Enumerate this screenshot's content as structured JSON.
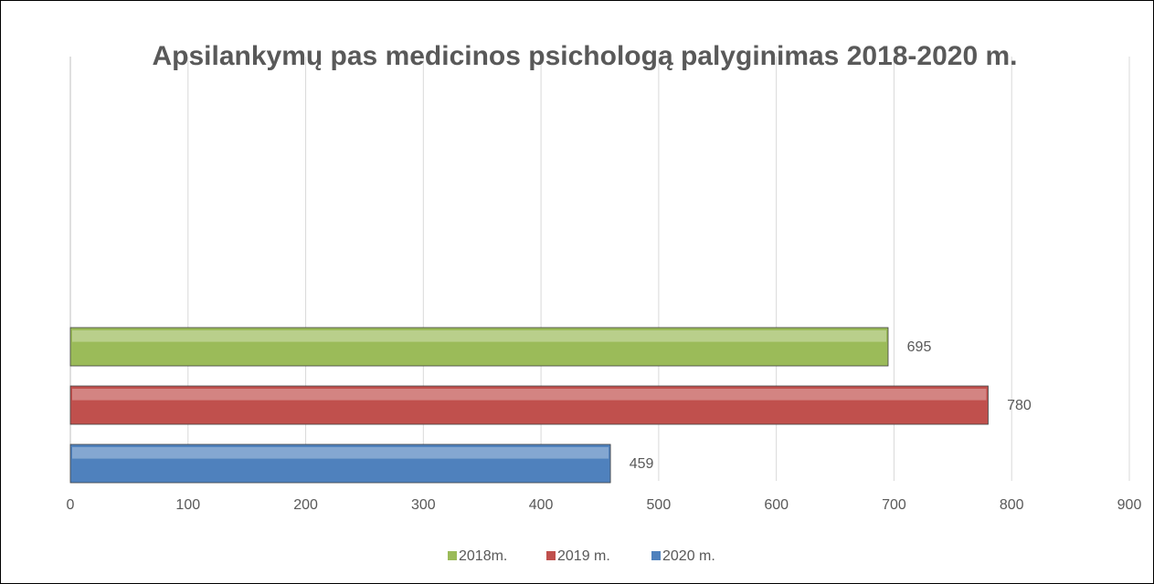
{
  "chart_data": {
    "type": "bar",
    "orientation": "horizontal",
    "title": "Apsilankymų pas medicinos psichologą palyginimas 2018-2020 m.",
    "categories": [
      null
    ],
    "series": [
      {
        "name": "2018m.",
        "color": "#9bbb59",
        "values": [
          695
        ]
      },
      {
        "name": "2019 m.",
        "color": "#c0504d",
        "values": [
          780
        ]
      },
      {
        "name": "2020 m.",
        "color": "#4f81bd",
        "values": [
          459
        ]
      }
    ],
    "xlim": [
      0,
      900
    ],
    "xticks": [
      0,
      100,
      200,
      300,
      400,
      500,
      600,
      700,
      800,
      900
    ],
    "grid": true,
    "legend": "bottom"
  }
}
